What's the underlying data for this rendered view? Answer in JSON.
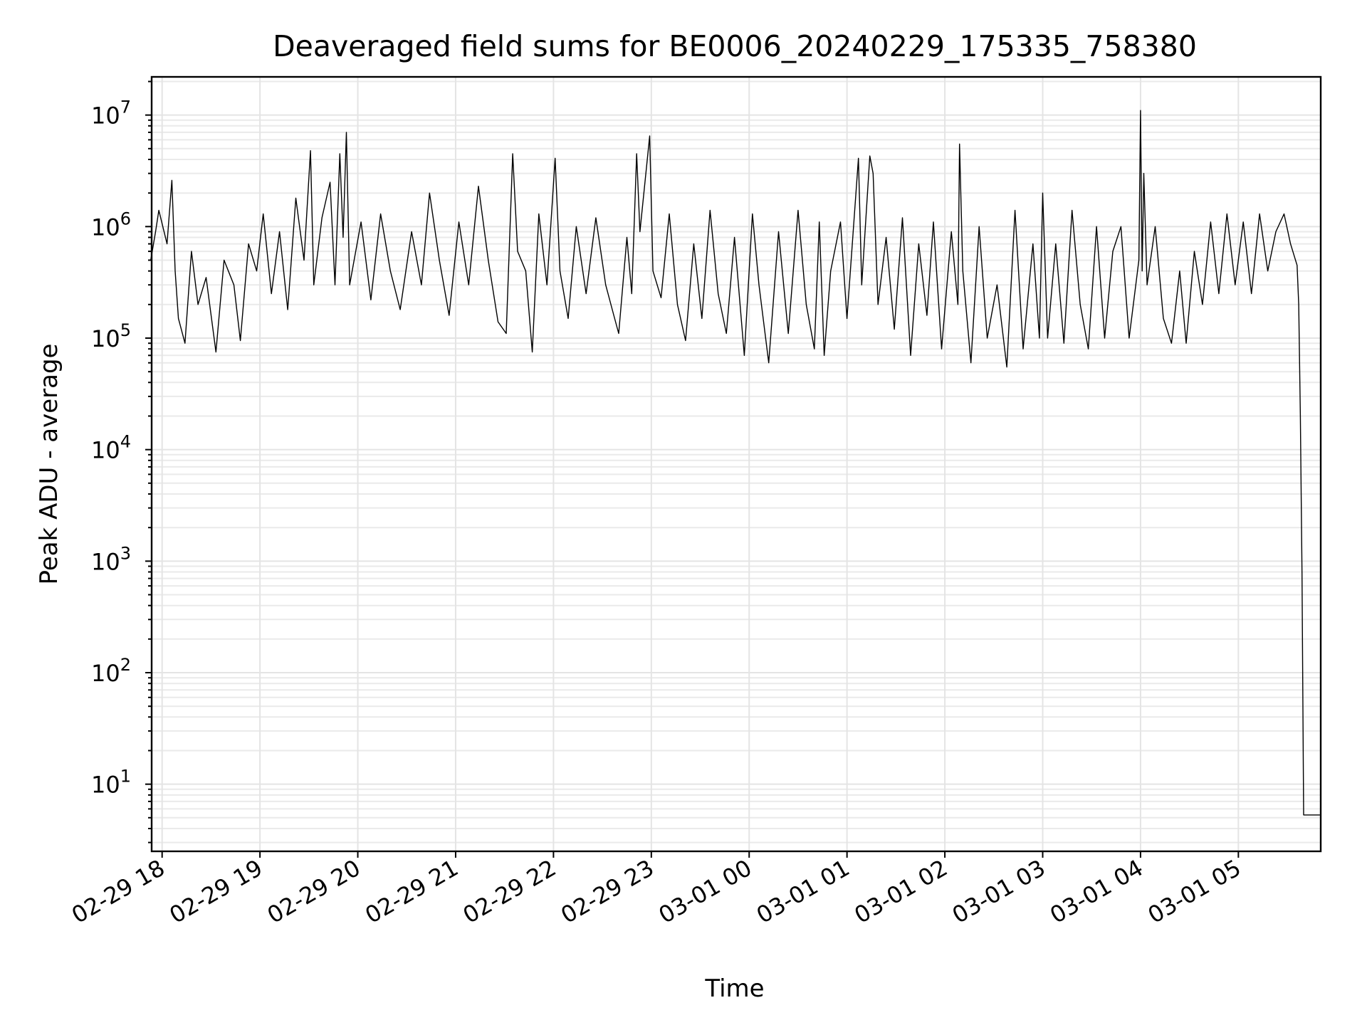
{
  "chart_data": {
    "type": "line",
    "title": "Deaveraged field sums for BE0006_20240229_175335_758380",
    "xlabel": "Time",
    "ylabel": "Peak ADU - average",
    "yscale": "log",
    "ylim": [
      2.5,
      22000000
    ],
    "xlim": [
      "02-29 17:53:35",
      "03-01 05:50:30"
    ],
    "grid": true,
    "x_ticks": [
      {
        "t": "02-29 18:00",
        "label": "02-29 18"
      },
      {
        "t": "02-29 19:00",
        "label": "02-29 19"
      },
      {
        "t": "02-29 20:00",
        "label": "02-29 20"
      },
      {
        "t": "02-29 21:00",
        "label": "02-29 21"
      },
      {
        "t": "02-29 22:00",
        "label": "02-29 22"
      },
      {
        "t": "02-29 23:00",
        "label": "02-29 23"
      },
      {
        "t": "03-01 00:00",
        "label": "03-01 00"
      },
      {
        "t": "03-01 01:00",
        "label": "03-01 01"
      },
      {
        "t": "03-01 02:00",
        "label": "03-01 02"
      },
      {
        "t": "03-01 03:00",
        "label": "03-01 03"
      },
      {
        "t": "03-01 04:00",
        "label": "03-01 04"
      },
      {
        "t": "03-01 05:00",
        "label": "03-01 05"
      }
    ],
    "y_ticks": [
      {
        "value": 10,
        "base": "10",
        "exp": "1"
      },
      {
        "value": 100,
        "base": "10",
        "exp": "2"
      },
      {
        "value": 1000,
        "base": "10",
        "exp": "3"
      },
      {
        "value": 10000,
        "base": "10",
        "exp": "4"
      },
      {
        "value": 100000,
        "base": "10",
        "exp": "5"
      },
      {
        "value": 1000000,
        "base": "10",
        "exp": "6"
      },
      {
        "value": 10000000,
        "base": "10",
        "exp": "7"
      }
    ],
    "series": [
      {
        "color": "#000000",
        "points": [
          [
            "02-29 17:53",
            500000
          ],
          [
            "02-29 17:56",
            900000
          ],
          [
            "02-29 17:58",
            1400000
          ],
          [
            "02-29 18:03",
            700000
          ],
          [
            "02-29 18:06",
            2600000
          ],
          [
            "02-29 18:08",
            400000
          ],
          [
            "02-29 18:10",
            150000
          ],
          [
            "02-29 18:14",
            90000
          ],
          [
            "02-29 18:18",
            600000
          ],
          [
            "02-29 18:22",
            200000
          ],
          [
            "02-29 18:27",
            350000
          ],
          [
            "02-29 18:33",
            75000
          ],
          [
            "02-29 18:38",
            500000
          ],
          [
            "02-29 18:44",
            300000
          ],
          [
            "02-29 18:48",
            95000
          ],
          [
            "02-29 18:53",
            700000
          ],
          [
            "02-29 18:58",
            400000
          ],
          [
            "02-29 19:02",
            1300000
          ],
          [
            "02-29 19:07",
            250000
          ],
          [
            "02-29 19:12",
            900000
          ],
          [
            "02-29 19:17",
            180000
          ],
          [
            "02-29 19:22",
            1800000
          ],
          [
            "02-29 19:27",
            500000
          ],
          [
            "02-29 19:31",
            4800000
          ],
          [
            "02-29 19:33",
            300000
          ],
          [
            "02-29 19:38",
            1200000
          ],
          [
            "02-29 19:43",
            2500000
          ],
          [
            "02-29 19:46",
            300000
          ],
          [
            "02-29 19:49",
            4500000
          ],
          [
            "02-29 19:51",
            800000
          ],
          [
            "02-29 19:53",
            7000000
          ],
          [
            "02-29 19:55",
            300000
          ],
          [
            "02-29 20:02",
            1100000
          ],
          [
            "02-29 20:08",
            220000
          ],
          [
            "02-29 20:14",
            1300000
          ],
          [
            "02-29 20:20",
            400000
          ],
          [
            "02-29 20:26",
            180000
          ],
          [
            "02-29 20:33",
            900000
          ],
          [
            "02-29 20:39",
            300000
          ],
          [
            "02-29 20:44",
            2000000
          ],
          [
            "02-29 20:50",
            500000
          ],
          [
            "02-29 20:56",
            160000
          ],
          [
            "02-29 21:02",
            1100000
          ],
          [
            "02-29 21:08",
            300000
          ],
          [
            "02-29 21:14",
            2300000
          ],
          [
            "02-29 21:20",
            500000
          ],
          [
            "02-29 21:26",
            140000
          ],
          [
            "02-29 21:31",
            110000
          ],
          [
            "02-29 21:35",
            4500000
          ],
          [
            "02-29 21:38",
            600000
          ],
          [
            "02-29 21:43",
            400000
          ],
          [
            "02-29 21:47",
            75000
          ],
          [
            "02-29 21:51",
            1300000
          ],
          [
            "02-29 21:56",
            300000
          ],
          [
            "02-29 22:01",
            4100000
          ],
          [
            "02-29 22:04",
            400000
          ],
          [
            "02-29 22:09",
            150000
          ],
          [
            "02-29 22:14",
            1000000
          ],
          [
            "02-29 22:20",
            250000
          ],
          [
            "02-29 22:26",
            1200000
          ],
          [
            "02-29 22:32",
            300000
          ],
          [
            "02-29 22:37",
            160000
          ],
          [
            "02-29 22:40",
            110000
          ],
          [
            "02-29 22:45",
            800000
          ],
          [
            "02-29 22:48",
            250000
          ],
          [
            "02-29 22:51",
            4500000
          ],
          [
            "02-29 22:53",
            900000
          ],
          [
            "02-29 22:59",
            6500000
          ],
          [
            "02-29 23:01",
            400000
          ],
          [
            "02-29 23:06",
            230000
          ],
          [
            "02-29 23:11",
            1300000
          ],
          [
            "02-29 23:16",
            200000
          ],
          [
            "02-29 23:21",
            95000
          ],
          [
            "02-29 23:26",
            700000
          ],
          [
            "02-29 23:31",
            150000
          ],
          [
            "02-29 23:36",
            1400000
          ],
          [
            "02-29 23:41",
            250000
          ],
          [
            "02-29 23:46",
            110000
          ],
          [
            "02-29 23:51",
            800000
          ],
          [
            "02-29 23:57",
            70000
          ],
          [
            "03-01 00:02",
            1300000
          ],
          [
            "03-01 00:06",
            300000
          ],
          [
            "03-01 00:12",
            60000
          ],
          [
            "03-01 00:18",
            900000
          ],
          [
            "03-01 00:24",
            110000
          ],
          [
            "03-01 00:30",
            1400000
          ],
          [
            "03-01 00:35",
            200000
          ],
          [
            "03-01 00:40",
            80000
          ],
          [
            "03-01 00:43",
            1100000
          ],
          [
            "03-01 00:46",
            70000
          ],
          [
            "03-01 00:50",
            400000
          ],
          [
            "03-01 00:56",
            1100000
          ],
          [
            "03-01 01:00",
            150000
          ],
          [
            "03-01 01:07",
            4100000
          ],
          [
            "03-01 01:09",
            300000
          ],
          [
            "03-01 01:14",
            4300000
          ],
          [
            "03-01 01:16",
            3000000
          ],
          [
            "03-01 01:19",
            200000
          ],
          [
            "03-01 01:24",
            800000
          ],
          [
            "03-01 01:29",
            120000
          ],
          [
            "03-01 01:34",
            1200000
          ],
          [
            "03-01 01:39",
            70000
          ],
          [
            "03-01 01:44",
            700000
          ],
          [
            "03-01 01:49",
            160000
          ],
          [
            "03-01 01:53",
            1100000
          ],
          [
            "03-01 01:58",
            80000
          ],
          [
            "03-01 02:04",
            900000
          ],
          [
            "03-01 02:08",
            200000
          ],
          [
            "03-01 02:09",
            5500000
          ],
          [
            "03-01 02:11",
            400000
          ],
          [
            "03-01 02:16",
            60000
          ],
          [
            "03-01 02:21",
            1000000
          ],
          [
            "03-01 02:26",
            100000
          ],
          [
            "03-01 02:32",
            300000
          ],
          [
            "03-01 02:38",
            55000
          ],
          [
            "03-01 02:43",
            1400000
          ],
          [
            "03-01 02:48",
            80000
          ],
          [
            "03-01 02:54",
            700000
          ],
          [
            "03-01 02:58",
            100000
          ],
          [
            "03-01 03:00",
            2000000
          ],
          [
            "03-01 03:03",
            100000
          ],
          [
            "03-01 03:08",
            700000
          ],
          [
            "03-01 03:13",
            90000
          ],
          [
            "03-01 03:18",
            1400000
          ],
          [
            "03-01 03:23",
            200000
          ],
          [
            "03-01 03:28",
            80000
          ],
          [
            "03-01 03:33",
            1000000
          ],
          [
            "03-01 03:38",
            100000
          ],
          [
            "03-01 03:43",
            600000
          ],
          [
            "03-01 03:48",
            1000000
          ],
          [
            "03-01 03:53",
            100000
          ],
          [
            "03-01 03:59",
            500000
          ],
          [
            "03-01 04:00",
            11000000
          ],
          [
            "03-01 04:01",
            400000
          ],
          [
            "03-01 04:02",
            3000000
          ],
          [
            "03-01 04:04",
            300000
          ],
          [
            "03-01 04:09",
            1000000
          ],
          [
            "03-01 04:14",
            150000
          ],
          [
            "03-01 04:19",
            90000
          ],
          [
            "03-01 04:24",
            400000
          ],
          [
            "03-01 04:28",
            90000
          ],
          [
            "03-01 04:33",
            600000
          ],
          [
            "03-01 04:38",
            200000
          ],
          [
            "03-01 04:43",
            1100000
          ],
          [
            "03-01 04:48",
            250000
          ],
          [
            "03-01 04:53",
            1300000
          ],
          [
            "03-01 04:58",
            300000
          ],
          [
            "03-01 05:03",
            1100000
          ],
          [
            "03-01 05:08",
            250000
          ],
          [
            "03-01 05:13",
            1300000
          ],
          [
            "03-01 05:18",
            400000
          ],
          [
            "03-01 05:23",
            900000
          ],
          [
            "03-01 05:28",
            1300000
          ],
          [
            "03-01 05:32",
            700000
          ],
          [
            "03-01 05:36",
            450000
          ],
          [
            "03-01 05:37",
            200000
          ],
          [
            "03-01 05:38",
            20000
          ],
          [
            "03-01 05:39",
            800
          ],
          [
            "03-01 05:40",
            5.3
          ],
          [
            "03-01 05:50",
            5.3
          ]
        ]
      }
    ]
  }
}
